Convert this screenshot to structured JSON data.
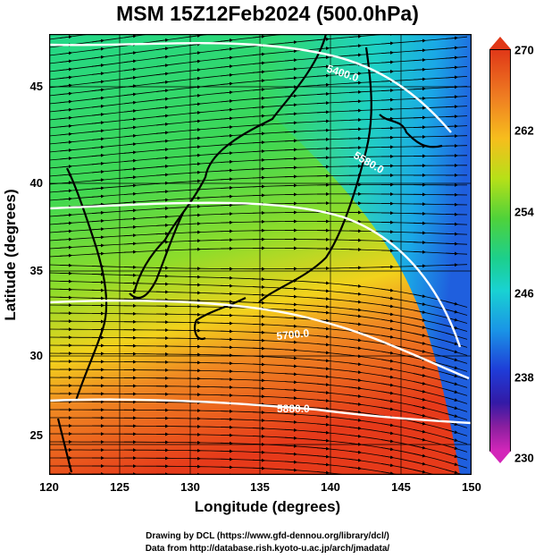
{
  "title": "MSM 15Z12Feb2024 (500.0hPa)",
  "xlabel": "Longitude (degrees)",
  "ylabel": "Latitude  (degrees)",
  "x_ticks": [
    "120",
    "125",
    "130",
    "135",
    "140",
    "145",
    "150"
  ],
  "y_ticks": [
    "45",
    "40",
    "35",
    "30",
    "25"
  ],
  "colorbar_ticks": [
    "270",
    "262",
    "254",
    "246",
    "238",
    "230"
  ],
  "contours": [
    {
      "label": "5400.0"
    },
    {
      "label": "5580.0"
    },
    {
      "label": "5700.0"
    },
    {
      "label": "5880.0"
    }
  ],
  "credits": [
    "Drawing by DCL (https://www.gfd-dennou.org/library/dcl/)",
    "Data from http://database.rish.kyoto-u.ac.jp/arch/jmadata/"
  ],
  "chart_data": {
    "type": "heatmap",
    "title": "MSM 15Z12Feb2024 (500.0hPa)",
    "xlabel": "Longitude (degrees)",
    "ylabel": "Latitude  (degrees)",
    "xlim": [
      120,
      150
    ],
    "ylim": [
      22.5,
      47.5
    ],
    "colorbar_range": [
      230,
      270
    ],
    "contour_values": [
      5400,
      5580,
      5700,
      5880
    ],
    "overlay": "wind streamlines, predominantly westerly"
  }
}
